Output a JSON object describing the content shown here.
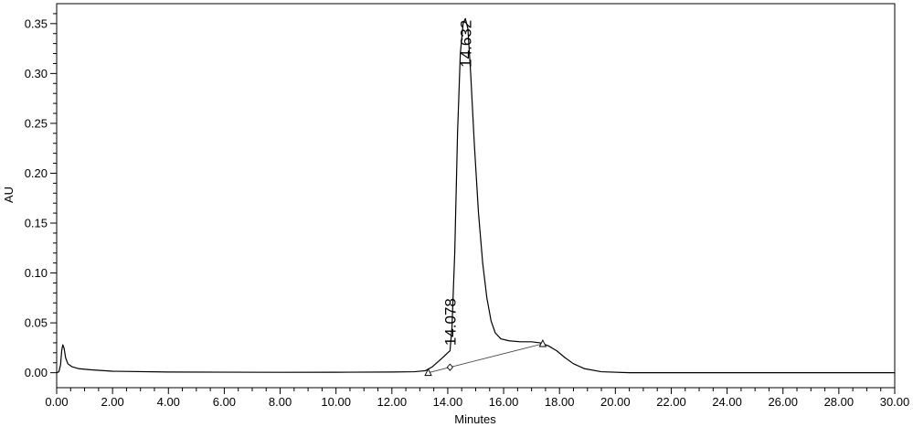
{
  "chart_data": {
    "type": "line",
    "title": "",
    "xlabel": "Minutes",
    "ylabel": "AU",
    "xlim": [
      0,
      30
    ],
    "ylim": [
      -0.015,
      0.37
    ],
    "grid": false,
    "x_ticks": [
      "0.00",
      "2.00",
      "4.00",
      "6.00",
      "8.00",
      "10.00",
      "12.00",
      "14.00",
      "16.00",
      "18.00",
      "20.00",
      "22.00",
      "24.00",
      "26.00",
      "28.00",
      "30.00"
    ],
    "y_ticks": [
      "0.00",
      "0.05",
      "0.10",
      "0.15",
      "0.20",
      "0.25",
      "0.30",
      "0.35"
    ],
    "series": [
      {
        "values": [
          [
            0.0,
            0.0
          ],
          [
            0.08,
            0.001
          ],
          [
            0.14,
            0.008
          ],
          [
            0.18,
            0.022
          ],
          [
            0.22,
            0.028
          ],
          [
            0.27,
            0.024
          ],
          [
            0.32,
            0.015
          ],
          [
            0.4,
            0.009
          ],
          [
            0.55,
            0.006
          ],
          [
            0.8,
            0.004
          ],
          [
            1.2,
            0.003
          ],
          [
            2.0,
            0.0015
          ],
          [
            4.0,
            0.0007
          ],
          [
            8.0,
            0.0004
          ],
          [
            10.0,
            0.0005
          ],
          [
            12.0,
            0.0007
          ],
          [
            12.8,
            0.001
          ],
          [
            13.2,
            0.002
          ],
          [
            13.45,
            0.006
          ],
          [
            13.65,
            0.011
          ],
          [
            13.85,
            0.016
          ],
          [
            14.0,
            0.02
          ],
          [
            14.08,
            0.022
          ],
          [
            14.15,
            0.045
          ],
          [
            14.25,
            0.12
          ],
          [
            14.35,
            0.24
          ],
          [
            14.45,
            0.32
          ],
          [
            14.55,
            0.35
          ],
          [
            14.63,
            0.355
          ],
          [
            14.72,
            0.345
          ],
          [
            14.82,
            0.3
          ],
          [
            14.95,
            0.23
          ],
          [
            15.1,
            0.16
          ],
          [
            15.25,
            0.11
          ],
          [
            15.4,
            0.075
          ],
          [
            15.55,
            0.052
          ],
          [
            15.7,
            0.04
          ],
          [
            15.9,
            0.034
          ],
          [
            16.2,
            0.032
          ],
          [
            16.6,
            0.031
          ],
          [
            17.0,
            0.031
          ],
          [
            17.3,
            0.03
          ],
          [
            17.6,
            0.027
          ],
          [
            17.9,
            0.022
          ],
          [
            18.2,
            0.015
          ],
          [
            18.5,
            0.009
          ],
          [
            18.9,
            0.004
          ],
          [
            19.5,
            0.001
          ],
          [
            20.5,
            0.0
          ],
          [
            30.0,
            0.0
          ]
        ]
      }
    ],
    "baseline_segments": [
      [
        [
          13.3,
          0.0
        ],
        [
          17.4,
          0.029
        ]
      ]
    ],
    "markers": [
      {
        "shape": "triangle",
        "x": 13.3,
        "y": 0.0
      },
      {
        "shape": "diamond",
        "x": 14.08,
        "y": 0.0055
      },
      {
        "shape": "triangle",
        "x": 17.4,
        "y": 0.029
      }
    ],
    "annotations": [
      {
        "text": "14.078",
        "x": 14.078,
        "y": 0.027
      },
      {
        "text": "14.632",
        "x": 14.632,
        "y": 0.306
      }
    ]
  }
}
